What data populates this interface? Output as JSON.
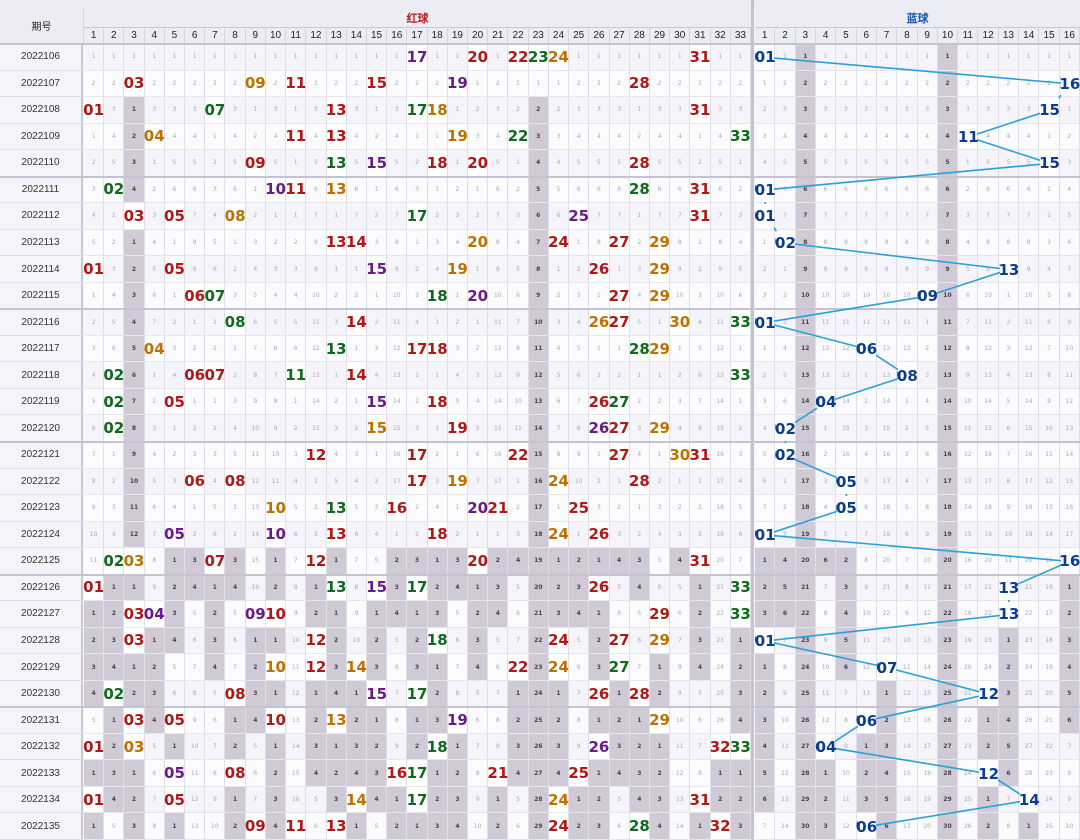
{
  "chart_data": {
    "type": "table",
    "title": "",
    "headers": {
      "period": "期号",
      "red": "红球",
      "blue": "蓝球"
    },
    "red_numbers": [
      "1",
      "2",
      "3",
      "4",
      "5",
      "6",
      "7",
      "8",
      "9",
      "10",
      "11",
      "12",
      "13",
      "14",
      "15",
      "16",
      "17",
      "18",
      "19",
      "20",
      "21",
      "22",
      "23",
      "24",
      "25",
      "26",
      "27",
      "28",
      "29",
      "30",
      "31",
      "32",
      "33"
    ],
    "blue_numbers": [
      "1",
      "2",
      "3",
      "4",
      "5",
      "6",
      "7",
      "8",
      "9",
      "10",
      "11",
      "12",
      "13",
      "14",
      "15",
      "16"
    ],
    "rows": [
      {
        "period": "2022106",
        "red": [
          17,
          20,
          22,
          23,
          24,
          31
        ],
        "blue": 1
      },
      {
        "period": "2022107",
        "red": [
          3,
          9,
          11,
          15,
          19,
          28
        ],
        "blue": 16
      },
      {
        "period": "2022108",
        "red": [
          1,
          7,
          13,
          17,
          18,
          31
        ],
        "blue": 15
      },
      {
        "period": "2022109",
        "red": [
          4,
          11,
          13,
          19,
          22,
          33
        ],
        "blue": 11
      },
      {
        "period": "2022110",
        "red": [
          9,
          13,
          15,
          18,
          20,
          28
        ],
        "blue": 15
      },
      {
        "period": "2022111",
        "red": [
          2,
          10,
          11,
          13,
          28,
          31
        ],
        "blue": 1
      },
      {
        "period": "2022112",
        "red": [
          3,
          5,
          8,
          17,
          25,
          31
        ],
        "blue": 1
      },
      {
        "period": "2022113",
        "red": [
          13,
          14,
          20,
          24,
          27,
          29
        ],
        "blue": 2
      },
      {
        "period": "2022114",
        "red": [
          1,
          5,
          15,
          19,
          26,
          29
        ],
        "blue": 13
      },
      {
        "period": "2022115",
        "red": [
          6,
          7,
          18,
          20,
          27,
          29
        ],
        "blue": 9
      },
      {
        "period": "2022116",
        "red": [
          8,
          14,
          26,
          27,
          30,
          33
        ],
        "blue": 1
      },
      {
        "period": "2022117",
        "red": [
          4,
          13,
          17,
          18,
          28,
          29
        ],
        "blue": 6
      },
      {
        "period": "2022118",
        "red": [
          2,
          6,
          7,
          11,
          14,
          33
        ],
        "blue": 8
      },
      {
        "period": "2022119",
        "red": [
          2,
          5,
          15,
          18,
          26,
          27
        ],
        "blue": 4
      },
      {
        "period": "2022120",
        "red": [
          2,
          15,
          19,
          26,
          27,
          29
        ],
        "blue": 2
      },
      {
        "period": "2022121",
        "red": [
          12,
          17,
          22,
          27,
          30,
          31
        ],
        "blue": 2
      },
      {
        "period": "2022122",
        "red": [
          6,
          8,
          17,
          19,
          24,
          28
        ],
        "blue": 5
      },
      {
        "period": "2022123",
        "red": [
          10,
          13,
          16,
          20,
          21,
          25
        ],
        "blue": 5
      },
      {
        "period": "2022124",
        "red": [
          5,
          10,
          13,
          18,
          24,
          26
        ],
        "blue": 1
      },
      {
        "period": "2022125",
        "red": [
          2,
          3,
          7,
          12,
          20,
          31
        ],
        "blue": 16
      },
      {
        "period": "2022126",
        "red": [
          1,
          13,
          15,
          17,
          26,
          33
        ],
        "blue": 13
      },
      {
        "period": "2022127",
        "red": [
          3,
          4,
          9,
          10,
          29,
          33
        ],
        "blue": 13
      },
      {
        "period": "2022128",
        "red": [
          3,
          12,
          18,
          24,
          27,
          29
        ],
        "blue": 1
      },
      {
        "period": "2022129",
        "red": [
          10,
          12,
          14,
          22,
          24,
          27
        ],
        "blue": 7
      },
      {
        "period": "2022130",
        "red": [
          2,
          8,
          15,
          17,
          26,
          28
        ],
        "blue": 12
      },
      {
        "period": "2022131",
        "red": [
          3,
          5,
          10,
          13,
          19,
          29
        ],
        "blue": 6
      },
      {
        "period": "2022132",
        "red": [
          1,
          3,
          18,
          26,
          32,
          33
        ],
        "blue": 4
      },
      {
        "period": "2022133",
        "red": [
          5,
          8,
          16,
          17,
          21,
          25
        ],
        "blue": 12
      },
      {
        "period": "2022134",
        "red": [
          1,
          5,
          14,
          17,
          24,
          31
        ],
        "blue": 14
      },
      {
        "period": "2022135",
        "red": [
          9,
          11,
          13,
          24,
          28,
          32
        ],
        "blue": 6
      }
    ]
  }
}
